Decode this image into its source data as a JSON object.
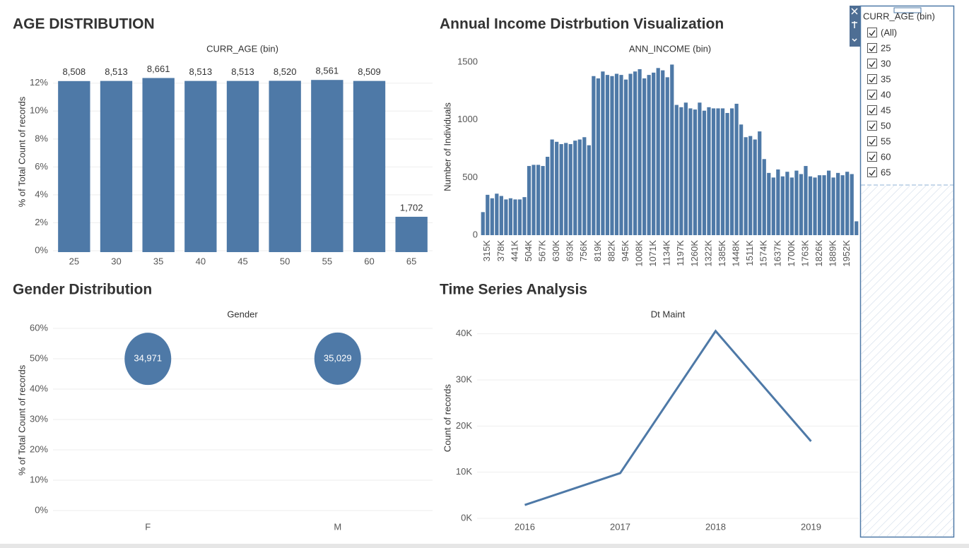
{
  "chart_data": [
    {
      "type": "bar",
      "title": "AGE DISTRIBUTION",
      "x_label": "CURR_AGE (bin)",
      "y_label": "% of Total Count of records",
      "categories": [
        "25",
        "30",
        "35",
        "40",
        "45",
        "50",
        "55",
        "60",
        "65"
      ],
      "values": [
        12.15,
        12.16,
        12.37,
        12.16,
        12.16,
        12.17,
        12.23,
        12.16,
        2.43
      ],
      "data_labels": [
        "8,508",
        "8,513",
        "8,661",
        "8,513",
        "8,513",
        "8,520",
        "8,561",
        "8,509",
        "1,702"
      ],
      "color": "#4e79a7",
      "ylim": [
        0,
        13
      ],
      "yticks": [
        {
          "value": 0,
          "label": "0%"
        },
        {
          "value": 2,
          "label": "2%"
        },
        {
          "value": 4,
          "label": "4%"
        },
        {
          "value": 6,
          "label": "6%"
        },
        {
          "value": 8,
          "label": "8%"
        },
        {
          "value": 10,
          "label": "10%"
        },
        {
          "value": 12,
          "label": "12%"
        }
      ],
      "grid": true
    },
    {
      "type": "bar",
      "title": "Annual Income Distrbution Visualization",
      "x_label": "ANN_INCOME (bin)",
      "y_label": "Number of Individuals",
      "categories": [
        null,
        "315K",
        null,
        null,
        "378K",
        null,
        null,
        "441K",
        null,
        null,
        "504K",
        null,
        null,
        "567K",
        null,
        null,
        "630K",
        null,
        null,
        "693K",
        null,
        null,
        "756K",
        null,
        null,
        "819K",
        null,
        null,
        "882K",
        null,
        null,
        "945K",
        null,
        null,
        "1008K",
        null,
        null,
        "1071K",
        null,
        null,
        "1134K",
        null,
        null,
        "1197K",
        null,
        null,
        "1260K",
        null,
        null,
        "1322K",
        null,
        null,
        "1385K",
        null,
        null,
        "1448K",
        null,
        null,
        "1511K",
        null,
        null,
        "1574K",
        null,
        null,
        "1637K",
        null,
        null,
        "1700K",
        null,
        null,
        "1763K",
        null,
        null,
        "1826K",
        null,
        null,
        "1889K",
        null,
        null,
        "1952K",
        null,
        null
      ],
      "values": [
        200,
        350,
        320,
        360,
        340,
        310,
        320,
        310,
        310,
        330,
        600,
        610,
        610,
        600,
        680,
        830,
        810,
        790,
        800,
        790,
        820,
        830,
        850,
        780,
        1380,
        1360,
        1420,
        1390,
        1380,
        1400,
        1390,
        1350,
        1400,
        1420,
        1440,
        1360,
        1390,
        1410,
        1450,
        1430,
        1370,
        1480,
        1130,
        1110,
        1150,
        1100,
        1090,
        1150,
        1080,
        1110,
        1100,
        1100,
        1100,
        1060,
        1100,
        1140,
        960,
        850,
        860,
        830,
        900,
        660,
        540,
        500,
        570,
        510,
        550,
        500,
        560,
        530,
        600,
        510,
        500,
        520,
        520,
        560,
        500,
        540,
        520,
        550,
        530,
        120
      ],
      "color": "#4e79a7",
      "ylim": [
        0,
        1550
      ],
      "yticks": [
        0,
        500,
        1000,
        1500
      ],
      "grid": false
    },
    {
      "type": "circle",
      "title": "Gender Distribution",
      "x_label": "Gender",
      "y_label": "% of Total Count of records",
      "categories": [
        "F",
        "M"
      ],
      "values": [
        49.96,
        50.04
      ],
      "data_labels": [
        "34,971",
        "35,029"
      ],
      "color": "#4e79a7",
      "ylim": [
        0,
        60
      ],
      "yticks": [
        {
          "value": 0,
          "label": "0%"
        },
        {
          "value": 10,
          "label": "10%"
        },
        {
          "value": 20,
          "label": "20%"
        },
        {
          "value": 30,
          "label": "30%"
        },
        {
          "value": 40,
          "label": "40%"
        },
        {
          "value": 50,
          "label": "50%"
        },
        {
          "value": 60,
          "label": "60%"
        }
      ],
      "grid": true
    },
    {
      "type": "line",
      "title": "Time Series Analysis",
      "x_label": "Dt Maint",
      "y_label": "Count of records",
      "categories": [
        "2016",
        "2017",
        "2018",
        "2019"
      ],
      "values": [
        2900,
        9800,
        40600,
        16700
      ],
      "color": "#4e79a7",
      "ylim": [
        0,
        45000
      ],
      "yticks": [
        {
          "value": 0,
          "label": "0K"
        },
        {
          "value": 10000,
          "label": "10K"
        },
        {
          "value": 20000,
          "label": "20K"
        },
        {
          "value": 30000,
          "label": "30K"
        },
        {
          "value": 40000,
          "label": "40K"
        }
      ],
      "grid": true
    }
  ],
  "filter": {
    "title": "CURR_AGE (bin)",
    "items": [
      "(All)",
      "25",
      "30",
      "35",
      "40",
      "45",
      "50",
      "55",
      "60",
      "65"
    ]
  }
}
